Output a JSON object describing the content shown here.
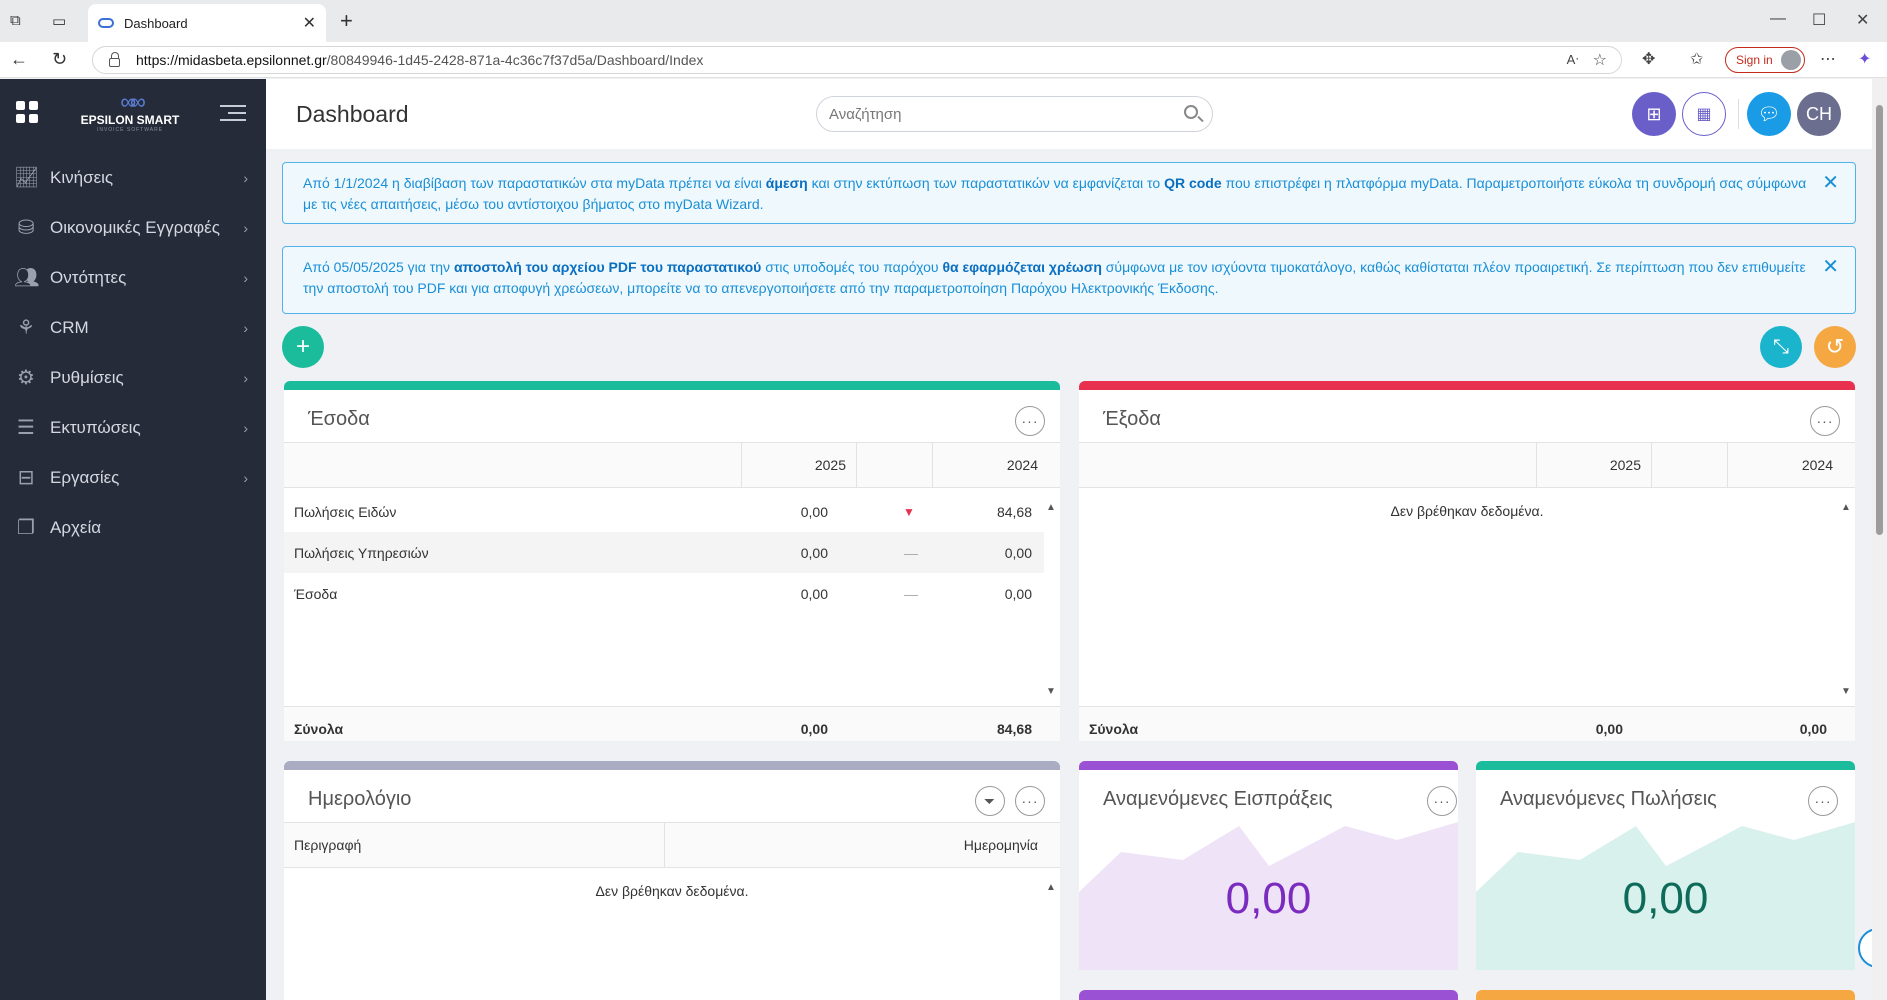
{
  "browser": {
    "tab_title": "Dashboard",
    "url_host": "https://midasbeta.epsilonnet.gr",
    "url_path": "/80849946-1d45-2428-871a-4c36c7f37d5a/Dashboard/Index",
    "sign_in": "Sign in"
  },
  "sidebar": {
    "brand": "EPSILON SMART",
    "brand_sub": "INVOICE SOFTWARE",
    "items": [
      {
        "label": "Κινήσεις",
        "icon": "chart-line-icon"
      },
      {
        "label": "Οικονομικές Εγγραφές",
        "icon": "coins-icon"
      },
      {
        "label": "Οντότητες",
        "icon": "users-icon"
      },
      {
        "label": "CRM",
        "icon": "crm-icon"
      },
      {
        "label": "Ρυθμίσεις",
        "icon": "gear-icon"
      },
      {
        "label": "Εκτυπώσεις",
        "icon": "document-icon"
      },
      {
        "label": "Εργασίες",
        "icon": "cabinet-icon"
      },
      {
        "label": "Αρχεία",
        "icon": "files-icon"
      }
    ]
  },
  "header": {
    "title": "Dashboard",
    "search_placeholder": "Αναζήτηση",
    "avatar_initials": "CH"
  },
  "alerts": [
    {
      "p1": "Από 1/1/2024 η διαβίβαση των παραστατικών στα myData πρέπει να είναι ",
      "b1": "άμεση",
      "p2": " και στην εκτύπωση των παραστατικών να εμφανίζεται το ",
      "b2": "QR code",
      "p3": " που επιστρέφει η πλατφόρμα myData. Παραμετροποιήστε εύκολα τη συνδρομή σας σύμφωνα με τις νέες απαιτήσεις, μέσω του αντίστοιχου βήματος στο myData Wizard."
    },
    {
      "p1": "Από 05/05/2025 για την ",
      "b1": "αποστολή του αρχείου PDF του παραστατικού",
      "p2": " στις υποδομές του παρόχου ",
      "b2": "θα εφαρμόζεται χρέωση",
      "p3": " σύμφωνα με τον ισχύοντα τιμοκατάλογο, καθώς καθίσταται πλέον προαιρετική. Σε περίπτωση που δεν επιθυμείτε την αποστολή του PDF και για αποφυγή χρεώσεων, μπορείτε να το απενεργοποιήσετε από την παραμετροποίηση Παρόχου Ηλεκτρονικής Έκδοσης."
    }
  ],
  "income": {
    "title": "Έσοδα",
    "col_2025": "2025",
    "col_2024": "2024",
    "rows": [
      {
        "label": "Πωλήσεις Ειδών",
        "v2025": "0,00",
        "trend": "▼",
        "v2024": "84,68"
      },
      {
        "label": "Πωλήσεις Υπηρεσιών",
        "v2025": "0,00",
        "trend": "—",
        "v2024": "0,00"
      },
      {
        "label": "Έσοδα",
        "v2025": "0,00",
        "trend": "—",
        "v2024": "0,00"
      }
    ],
    "totals_label": "Σύνολα",
    "total_2025": "0,00",
    "total_2024": "84,68"
  },
  "expenses": {
    "title": "Έξοδα",
    "col_2025": "2025",
    "col_2024": "2024",
    "no_data": "Δεν βρέθηκαν δεδομένα.",
    "totals_label": "Σύνολα",
    "total_2025": "0,00",
    "total_2024": "0,00"
  },
  "calendar": {
    "title": "Ημερολόγιο",
    "col_desc": "Περιγραφή",
    "col_date": "Ημερομηνία",
    "no_data": "Δεν βρέθηκαν δεδομένα."
  },
  "kpi_receipts": {
    "title": "Αναμενόμενες Εισπράξεις",
    "value": "0,00"
  },
  "kpi_sales": {
    "title": "Αναμενόμενες Πωλήσεις",
    "value": "0,00"
  },
  "colors": {
    "teal": "#1abc9c",
    "red": "#e8304f",
    "purple": "#9b51d3",
    "slate": "#a9acc2",
    "orange": "#f5a742"
  }
}
